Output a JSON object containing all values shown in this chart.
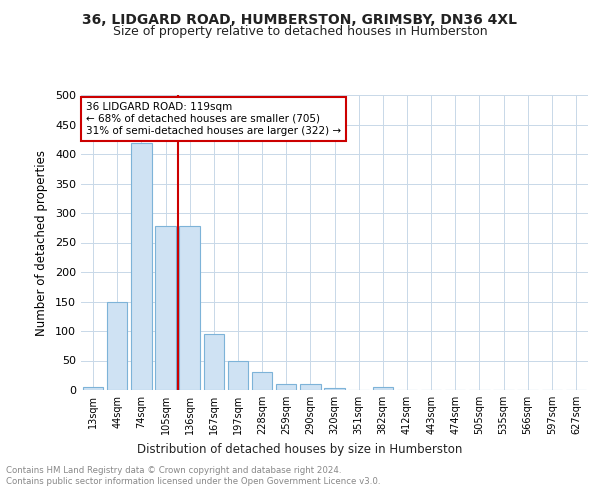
{
  "title1": "36, LIDGARD ROAD, HUMBERSTON, GRIMSBY, DN36 4XL",
  "title2": "Size of property relative to detached houses in Humberston",
  "xlabel": "Distribution of detached houses by size in Humberston",
  "ylabel": "Number of detached properties",
  "bar_labels": [
    "13sqm",
    "44sqm",
    "74sqm",
    "105sqm",
    "136sqm",
    "167sqm",
    "197sqm",
    "228sqm",
    "259sqm",
    "290sqm",
    "320sqm",
    "351sqm",
    "382sqm",
    "412sqm",
    "443sqm",
    "474sqm",
    "505sqm",
    "535sqm",
    "566sqm",
    "597sqm",
    "627sqm"
  ],
  "bar_values": [
    5,
    150,
    418,
    278,
    278,
    95,
    50,
    30,
    10,
    10,
    3,
    0,
    5,
    0,
    0,
    0,
    0,
    0,
    0,
    0,
    0
  ],
  "bar_color": "#cfe2f3",
  "bar_edge_color": "#7db3d8",
  "vline_x": 3.5,
  "vline_color": "#cc0000",
  "annotation_text": "36 LIDGARD ROAD: 119sqm\n← 68% of detached houses are smaller (705)\n31% of semi-detached houses are larger (322) →",
  "annotation_box_color": "#ffffff",
  "annotation_box_edgecolor": "#cc0000",
  "ylim": [
    0,
    500
  ],
  "yticks": [
    0,
    50,
    100,
    150,
    200,
    250,
    300,
    350,
    400,
    450,
    500
  ],
  "footer1": "Contains HM Land Registry data © Crown copyright and database right 2024.",
  "footer2": "Contains public sector information licensed under the Open Government Licence v3.0.",
  "background_color": "#ffffff",
  "grid_color": "#c8d8e8",
  "title1_fontsize": 10,
  "title2_fontsize": 9
}
